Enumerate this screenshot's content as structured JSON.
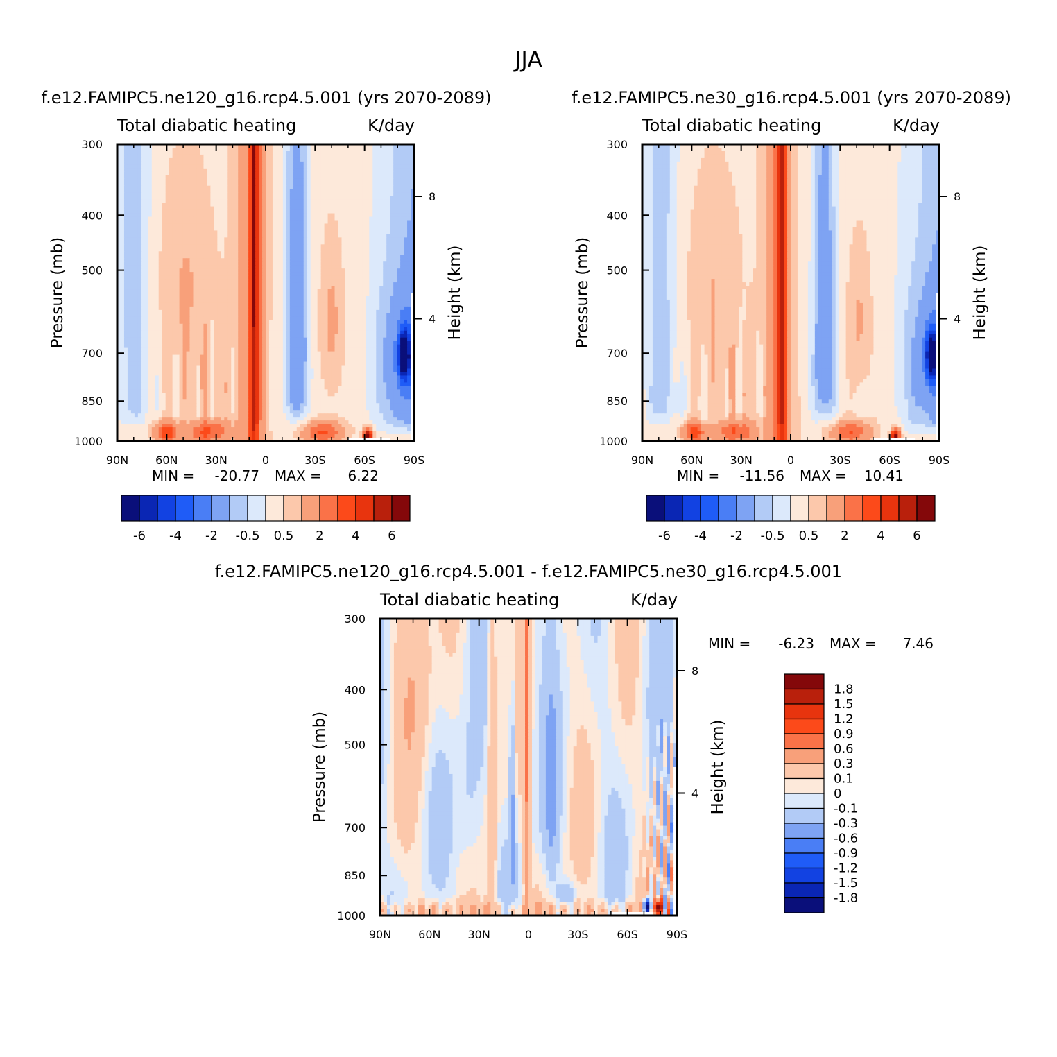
{
  "title": "JJA",
  "colors": {
    "diverging": [
      "#0a0f7a",
      "#0a26b4",
      "#1242e2",
      "#1f5cf7",
      "#4a7ef5",
      "#7ea3f3",
      "#b2cbf6",
      "#dce9fb",
      "#fde9da",
      "#fcc8ab",
      "#f8a07a",
      "#fa7248",
      "#fc4a1a",
      "#e8340e",
      "#b9200c",
      "#84080a"
    ],
    "difference": [
      "#0a0f7a",
      "#0a26b4",
      "#1242e2",
      "#1f5cf7",
      "#4a7ef5",
      "#7ea3f3",
      "#b2cbf6",
      "#dce9fb",
      "#fde9da",
      "#fcc8ab",
      "#f8a07a",
      "#fa7248",
      "#fc4a1a",
      "#e8340e",
      "#b9200c",
      "#84080a"
    ],
    "missing": "#ffffff"
  },
  "chart_data": [
    {
      "type": "heatmap",
      "id": "ne120",
      "title": "f.e12.FAMIPC5.ne120_g16.rcp4.5.001 (yrs 2070-2089)",
      "left_label": "Total diabatic heating",
      "right_label": "K/day",
      "ylabel": "Pressure (mb)",
      "y2label": "Height (km)",
      "xticks": [
        "90N",
        "60N",
        "30N",
        "0",
        "30S",
        "60S",
        "90S"
      ],
      "yticks": [
        "300",
        "400",
        "500",
        "700",
        "850",
        "1000"
      ],
      "y2ticks": [
        "8",
        "4"
      ],
      "stats": {
        "min_label": "MIN =",
        "min": "-20.77",
        "max_label": "MAX =",
        "max": "6.22"
      },
      "colorbar_labels": [
        "-6",
        "-4",
        "-2",
        "-0.5",
        "0.5",
        "2",
        "4",
        "6"
      ],
      "levels": [
        -7,
        -6,
        -5,
        -4,
        -3,
        -2,
        -1,
        -0.5,
        0,
        0.5,
        1,
        2,
        3,
        4,
        5,
        6,
        7
      ],
      "lat_range": [
        90,
        -90
      ],
      "pressure_range": [
        300,
        1000
      ],
      "variant": 0
    },
    {
      "type": "heatmap",
      "id": "ne30",
      "title": "f.e12.FAMIPC5.ne30_g16.rcp4.5.001 (yrs 2070-2089)",
      "left_label": "Total diabatic heating",
      "right_label": "K/day",
      "ylabel": "Pressure (mb)",
      "y2label": "Height (km)",
      "xticks": [
        "90N",
        "60N",
        "30N",
        "0",
        "30S",
        "60S",
        "90S"
      ],
      "yticks": [
        "300",
        "400",
        "500",
        "700",
        "850",
        "1000"
      ],
      "y2ticks": [
        "8",
        "4"
      ],
      "stats": {
        "min_label": "MIN =",
        "min": "-11.56",
        "max_label": "MAX =",
        "max": "10.41"
      },
      "colorbar_labels": [
        "-6",
        "-4",
        "-2",
        "-0.5",
        "0.5",
        "2",
        "4",
        "6"
      ],
      "levels": [
        -7,
        -6,
        -5,
        -4,
        -3,
        -2,
        -1,
        -0.5,
        0,
        0.5,
        1,
        2,
        3,
        4,
        5,
        6,
        7
      ],
      "lat_range": [
        90,
        -90
      ],
      "pressure_range": [
        300,
        1000
      ],
      "variant": 1
    },
    {
      "type": "heatmap",
      "id": "diff",
      "title": "f.e12.FAMIPC5.ne120_g16.rcp4.5.001 - f.e12.FAMIPC5.ne30_g16.rcp4.5.001",
      "left_label": "Total diabatic heating",
      "right_label": "K/day",
      "ylabel": "Pressure (mb)",
      "y2label": "Height (km)",
      "xticks": [
        "90N",
        "60N",
        "30N",
        "0",
        "30S",
        "60S",
        "90S"
      ],
      "yticks": [
        "300",
        "400",
        "500",
        "700",
        "850",
        "1000"
      ],
      "y2ticks": [
        "8",
        "4"
      ],
      "stats": {
        "min_label": "MIN =",
        "min": "-6.23",
        "max_label": "MAX =",
        "max": "7.46"
      },
      "colorbar_labels": [
        "1.8",
        "1.5",
        "1.2",
        "0.9",
        "0.6",
        "0.3",
        "0.1",
        "0",
        "-0.1",
        "-0.3",
        "-0.6",
        "-0.9",
        "-1.2",
        "-1.5",
        "-1.8"
      ],
      "levels": [
        -2.1,
        -1.8,
        -1.5,
        -1.2,
        -0.9,
        -0.6,
        -0.3,
        -0.1,
        0,
        0.1,
        0.3,
        0.6,
        0.9,
        1.2,
        1.5,
        1.8,
        2.1
      ],
      "lat_range": [
        90,
        -90
      ],
      "pressure_range": [
        300,
        1000
      ],
      "variant": 2
    }
  ]
}
